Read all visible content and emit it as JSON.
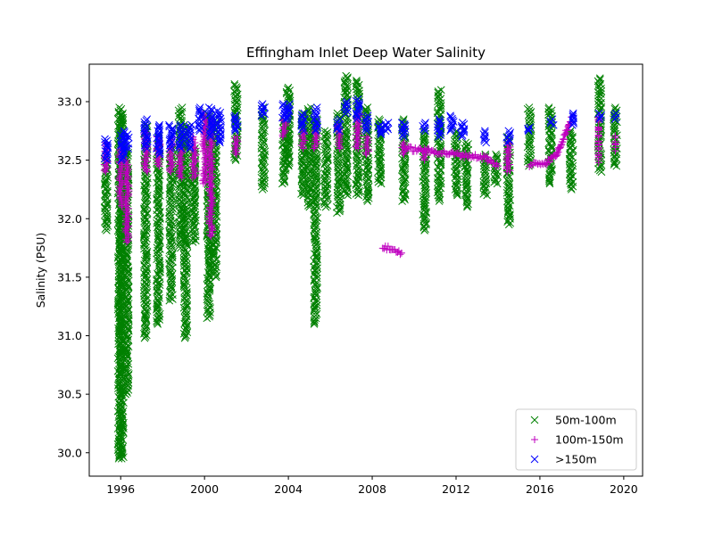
{
  "chart_data": {
    "type": "scatter",
    "title": "Effingham Inlet Deep Water Salinity",
    "xlabel": "",
    "ylabel": "Salinity (PSU)",
    "xlim": [
      1994.5,
      2020.9
    ],
    "ylim": [
      29.8,
      33.32
    ],
    "x_ticks": [
      1996,
      2000,
      2004,
      2008,
      2012,
      2016,
      2020
    ],
    "x_tick_labels": [
      "1996",
      "2000",
      "2004",
      "2008",
      "2012",
      "2016",
      "2020"
    ],
    "y_ticks": [
      30.0,
      30.5,
      31.0,
      31.5,
      32.0,
      32.5,
      33.0
    ],
    "y_tick_labels": [
      "30.0",
      "30.5",
      "31.0",
      "31.5",
      "32.0",
      "32.5",
      "33.0"
    ],
    "grid": false,
    "legend_position": "lower-right",
    "series": [
      {
        "name": "50m-100m",
        "marker": "x",
        "color": "#008000",
        "ranges": [
          {
            "x": 1995.3,
            "ymin": 31.9,
            "ymax": 32.55
          },
          {
            "x": 1995.95,
            "ymin": 29.95,
            "ymax": 32.95
          },
          {
            "x": 1996.05,
            "ymin": 29.95,
            "ymax": 32.9
          },
          {
            "x": 1996.3,
            "ymin": 30.5,
            "ymax": 32.6
          },
          {
            "x": 1997.2,
            "ymin": 30.98,
            "ymax": 32.8
          },
          {
            "x": 1997.8,
            "ymin": 31.1,
            "ymax": 32.7
          },
          {
            "x": 1998.4,
            "ymin": 31.3,
            "ymax": 32.6
          },
          {
            "x": 1998.85,
            "ymin": 31.75,
            "ymax": 32.95
          },
          {
            "x": 1999.1,
            "ymin": 30.98,
            "ymax": 32.8
          },
          {
            "x": 1999.5,
            "ymin": 31.8,
            "ymax": 32.6
          },
          {
            "x": 2000.2,
            "ymin": 31.15,
            "ymax": 32.9
          },
          {
            "x": 2000.5,
            "ymin": 31.5,
            "ymax": 32.85
          },
          {
            "x": 2001.5,
            "ymin": 32.5,
            "ymax": 33.15
          },
          {
            "x": 2002.8,
            "ymin": 32.25,
            "ymax": 32.95
          },
          {
            "x": 2003.8,
            "ymin": 32.3,
            "ymax": 32.85
          },
          {
            "x": 2004.0,
            "ymin": 32.45,
            "ymax": 33.12
          },
          {
            "x": 2004.7,
            "ymin": 32.2,
            "ymax": 32.9
          },
          {
            "x": 2005.0,
            "ymin": 32.1,
            "ymax": 32.95
          },
          {
            "x": 2005.3,
            "ymin": 31.1,
            "ymax": 32.85
          },
          {
            "x": 2005.8,
            "ymin": 32.1,
            "ymax": 32.75
          },
          {
            "x": 2006.4,
            "ymin": 32.05,
            "ymax": 32.9
          },
          {
            "x": 2006.75,
            "ymin": 32.2,
            "ymax": 33.22
          },
          {
            "x": 2007.3,
            "ymin": 32.2,
            "ymax": 33.18
          },
          {
            "x": 2007.75,
            "ymin": 32.15,
            "ymax": 32.95
          },
          {
            "x": 2008.35,
            "ymin": 32.3,
            "ymax": 32.85
          },
          {
            "x": 2009.5,
            "ymin": 32.15,
            "ymax": 32.85
          },
          {
            "x": 2010.5,
            "ymin": 31.9,
            "ymax": 32.75
          },
          {
            "x": 2011.2,
            "ymin": 32.15,
            "ymax": 33.1
          },
          {
            "x": 2012.0,
            "ymin": 32.2,
            "ymax": 32.75
          },
          {
            "x": 2012.5,
            "ymin": 32.1,
            "ymax": 32.65
          },
          {
            "x": 2013.4,
            "ymin": 32.2,
            "ymax": 32.55
          },
          {
            "x": 2013.9,
            "ymin": 32.3,
            "ymax": 32.55
          },
          {
            "x": 2014.5,
            "ymin": 31.95,
            "ymax": 32.7
          },
          {
            "x": 2015.5,
            "ymin": 32.45,
            "ymax": 32.95
          },
          {
            "x": 2016.5,
            "ymin": 32.3,
            "ymax": 32.95
          },
          {
            "x": 2017.5,
            "ymin": 32.25,
            "ymax": 32.75
          },
          {
            "x": 2018.85,
            "ymin": 32.4,
            "ymax": 33.2
          },
          {
            "x": 2019.6,
            "ymin": 32.45,
            "ymax": 32.95
          }
        ]
      },
      {
        "name": "100m-150m",
        "marker": "+",
        "color": "#bf00bf",
        "ranges": [
          {
            "x": 1995.3,
            "ymin": 32.4,
            "ymax": 32.65
          },
          {
            "x": 1996.0,
            "ymin": 32.1,
            "ymax": 32.6
          },
          {
            "x": 1996.3,
            "ymin": 31.8,
            "ymax": 32.5
          },
          {
            "x": 1997.2,
            "ymin": 32.4,
            "ymax": 32.75
          },
          {
            "x": 1997.8,
            "ymin": 32.45,
            "ymax": 32.7
          },
          {
            "x": 1998.4,
            "ymin": 32.4,
            "ymax": 32.7
          },
          {
            "x": 1998.85,
            "ymin": 32.35,
            "ymax": 32.6
          },
          {
            "x": 1999.5,
            "ymin": 32.35,
            "ymax": 32.7
          },
          {
            "x": 2000.0,
            "ymin": 32.3,
            "ymax": 32.9
          },
          {
            "x": 2000.3,
            "ymin": 31.85,
            "ymax": 32.85
          },
          {
            "x": 2001.5,
            "ymin": 32.55,
            "ymax": 32.7
          },
          {
            "x": 2003.8,
            "ymin": 32.7,
            "ymax": 32.85
          },
          {
            "x": 2004.7,
            "ymin": 32.6,
            "ymax": 32.75
          },
          {
            "x": 2005.3,
            "ymin": 32.6,
            "ymax": 32.75
          },
          {
            "x": 2006.4,
            "ymin": 32.6,
            "ymax": 32.8
          },
          {
            "x": 2007.3,
            "ymin": 32.6,
            "ymax": 32.9
          },
          {
            "x": 2007.75,
            "ymin": 32.55,
            "ymax": 32.7
          },
          {
            "x": 2009.5,
            "ymin": 32.55,
            "ymax": 32.65
          },
          {
            "x": 2010.5,
            "ymin": 32.5,
            "ymax": 32.6
          },
          {
            "x": 2014.5,
            "ymin": 32.4,
            "ymax": 32.65
          }
        ],
        "segments": [
          {
            "x0": 2008.5,
            "y0": 31.76,
            "x1": 2009.4,
            "y1": 31.71
          },
          {
            "x0": 2009.6,
            "y0": 32.6,
            "x1": 2013.5,
            "y1": 32.52
          },
          {
            "x0": 2013.5,
            "y0": 32.5,
            "x1": 2014.0,
            "y1": 32.45
          },
          {
            "x0": 2015.5,
            "y0": 32.46,
            "x1": 2016.3,
            "y1": 32.48
          },
          {
            "x0": 2016.3,
            "y0": 32.48,
            "x1": 2016.8,
            "y1": 32.55
          },
          {
            "x0": 2016.8,
            "y0": 32.55,
            "x1": 2017.5,
            "y1": 32.85
          },
          {
            "x0": 2018.8,
            "y0": 32.88,
            "x1": 2018.8,
            "y1": 32.5
          },
          {
            "x0": 2019.6,
            "y0": 32.7,
            "x1": 2019.6,
            "y1": 32.6
          }
        ]
      },
      {
        "name": ">150m",
        "marker": "x",
        "color": "#0000ff",
        "ranges": [
          {
            "x": 1995.3,
            "ymin": 32.5,
            "ymax": 32.68
          },
          {
            "x": 1996.1,
            "ymin": 32.5,
            "ymax": 32.75
          },
          {
            "x": 1996.3,
            "ymin": 32.6,
            "ymax": 32.72
          },
          {
            "x": 1997.2,
            "ymin": 32.6,
            "ymax": 32.85
          },
          {
            "x": 1997.8,
            "ymin": 32.55,
            "ymax": 32.8
          },
          {
            "x": 1998.4,
            "ymin": 32.6,
            "ymax": 32.8
          },
          {
            "x": 1998.85,
            "ymin": 32.6,
            "ymax": 32.8
          },
          {
            "x": 1999.3,
            "ymin": 32.6,
            "ymax": 32.8
          },
          {
            "x": 1999.8,
            "ymin": 32.75,
            "ymax": 32.95
          },
          {
            "x": 2000.3,
            "ymin": 32.7,
            "ymax": 32.95
          },
          {
            "x": 2000.7,
            "ymin": 32.65,
            "ymax": 32.92
          },
          {
            "x": 2001.5,
            "ymin": 32.75,
            "ymax": 32.88
          },
          {
            "x": 2002.8,
            "ymin": 32.88,
            "ymax": 32.98
          },
          {
            "x": 2003.8,
            "ymin": 32.85,
            "ymax": 32.98
          },
          {
            "x": 2004.0,
            "ymin": 32.85,
            "ymax": 32.98
          },
          {
            "x": 2004.7,
            "ymin": 32.75,
            "ymax": 32.9
          },
          {
            "x": 2005.3,
            "ymin": 32.75,
            "ymax": 32.95
          },
          {
            "x": 2006.4,
            "ymin": 32.75,
            "ymax": 32.85
          },
          {
            "x": 2006.75,
            "ymin": 32.9,
            "ymax": 33.0
          },
          {
            "x": 2007.3,
            "ymin": 32.85,
            "ymax": 33.02
          },
          {
            "x": 2007.75,
            "ymin": 32.75,
            "ymax": 32.88
          },
          {
            "x": 2008.35,
            "ymin": 32.72,
            "ymax": 32.8
          },
          {
            "x": 2008.7,
            "ymin": 32.75,
            "ymax": 32.82
          },
          {
            "x": 2009.5,
            "ymin": 32.7,
            "ymax": 32.82
          },
          {
            "x": 2010.5,
            "ymin": 32.75,
            "ymax": 32.82
          },
          {
            "x": 2011.2,
            "ymin": 32.7,
            "ymax": 32.85
          },
          {
            "x": 2011.8,
            "ymin": 32.75,
            "ymax": 32.88
          },
          {
            "x": 2012.3,
            "ymin": 32.7,
            "ymax": 32.82
          },
          {
            "x": 2013.4,
            "ymin": 32.65,
            "ymax": 32.75
          },
          {
            "x": 2014.5,
            "ymin": 32.65,
            "ymax": 32.75
          },
          {
            "x": 2015.5,
            "ymin": 32.75,
            "ymax": 32.78
          },
          {
            "x": 2016.6,
            "ymin": 32.8,
            "ymax": 32.85
          },
          {
            "x": 2017.6,
            "ymin": 32.8,
            "ymax": 32.9
          },
          {
            "x": 2018.85,
            "ymin": 32.85,
            "ymax": 32.9
          },
          {
            "x": 2019.6,
            "ymin": 32.85,
            "ymax": 32.9
          }
        ]
      }
    ]
  }
}
